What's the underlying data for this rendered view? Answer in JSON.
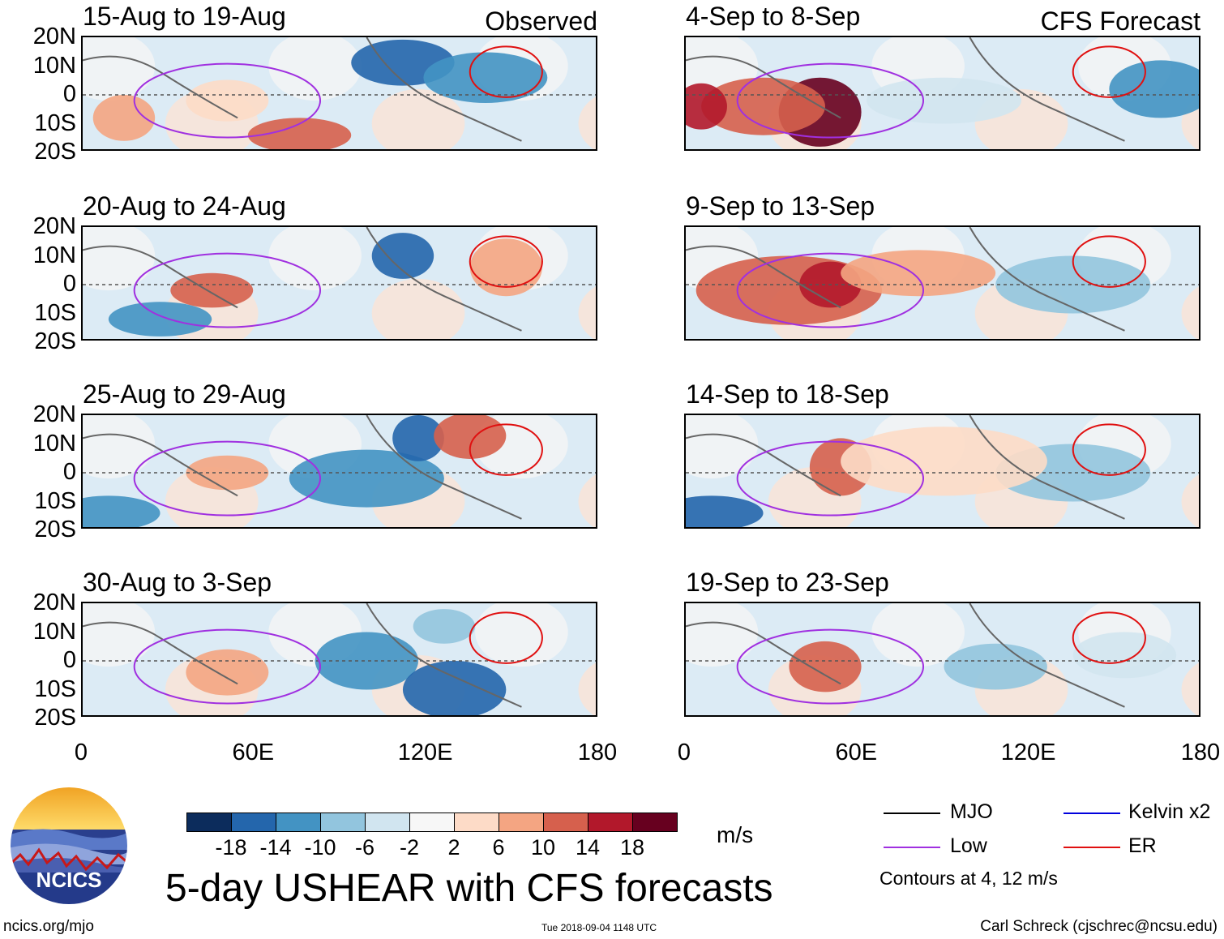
{
  "chart_data": {
    "type": "heatmap",
    "title": "5-day USHEAR with CFS forecasts",
    "units": "m/s",
    "colorbar": {
      "ticks": [
        "-18",
        "-14",
        "-10",
        "-6",
        "-2",
        "2",
        "6",
        "10",
        "14",
        "18"
      ],
      "colors": [
        "#0c2c5c",
        "#2466ac",
        "#4393c3",
        "#92c5de",
        "#d1e5f0",
        "#f7f7f7",
        "#fddbc7",
        "#f4a582",
        "#d6604d",
        "#b2182b",
        "#67001f"
      ]
    },
    "x_ticks": [
      "0",
      "60E",
      "120E",
      "180"
    ],
    "y_ticks": [
      "20N",
      "10N",
      "0",
      "10S",
      "20S"
    ],
    "xlim_deg": [
      0,
      180
    ],
    "ylim_deg": [
      -20,
      20
    ],
    "legend": [
      {
        "label": "MJO",
        "color": "#000000"
      },
      {
        "label": "Kelvin x2",
        "color": "#0000dd"
      },
      {
        "label": "Low",
        "color": "#a030e0"
      },
      {
        "label": "ER",
        "color": "#e01010"
      }
    ],
    "contour_note": "Contours at 4, 12 m/s",
    "panels": [
      {
        "period": "15-Aug to 19-Aug",
        "tag": "Observed"
      },
      {
        "period": "20-Aug to 24-Aug",
        "tag": ""
      },
      {
        "period": "25-Aug to 29-Aug",
        "tag": ""
      },
      {
        "period": "30-Aug to 3-Sep",
        "tag": ""
      },
      {
        "period": "4-Sep to 8-Sep",
        "tag": "CFS Forecast"
      },
      {
        "period": "9-Sep to 13-Sep",
        "tag": ""
      },
      {
        "period": "14-Sep to 18-Sep",
        "tag": ""
      },
      {
        "period": "19-Sep to 23-Sep",
        "tag": ""
      }
    ]
  },
  "branding": {
    "logo_text": "NCICS",
    "site": "ncics.org/mjo",
    "timestamp": "Tue 2018-09-04 1148 UTC",
    "author": "Carl Schreck (cjschrec@ncsu.edu)"
  }
}
